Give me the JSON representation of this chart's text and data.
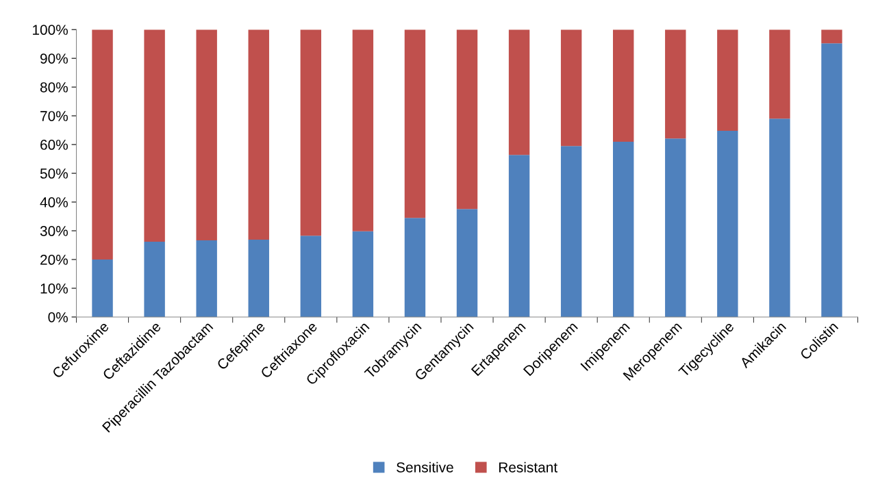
{
  "chart_data": {
    "type": "bar",
    "stacked": true,
    "categories": [
      "Cefuroxime",
      "Ceftazidime",
      "Piperacillin Tazobactam",
      "Cefepime",
      "Ceftriaxone",
      "Ciprofloxacin",
      "Tobramycin",
      "Gentamycin",
      "Ertapenem",
      "Doripenem",
      "Imipenem",
      "Meropenem",
      "Tigecycline",
      "Amikacin",
      "Colistin"
    ],
    "series": [
      {
        "name": "Sensitive",
        "color": "#4f81bd",
        "values": [
          20,
          26.2,
          26.7,
          26.9,
          28.3,
          29.8,
          34.5,
          37.6,
          56.4,
          59.5,
          61,
          62.1,
          64.8,
          69,
          95.2
        ]
      },
      {
        "name": "Resistant",
        "color": "#c0504d",
        "values": [
          80,
          73.8,
          73.3,
          73.1,
          71.7,
          70.2,
          65.5,
          62.4,
          43.6,
          40.5,
          39,
          37.9,
          35.2,
          31,
          4.8
        ]
      }
    ],
    "ylim": [
      0,
      100
    ],
    "yticks": [
      {
        "value": 0,
        "label": "0%"
      },
      {
        "value": 10,
        "label": "10%"
      },
      {
        "value": 20,
        "label": "20%"
      },
      {
        "value": 30,
        "label": "30%"
      },
      {
        "value": 40,
        "label": "40%"
      },
      {
        "value": 50,
        "label": "50%"
      },
      {
        "value": 60,
        "label": "60%"
      },
      {
        "value": 70,
        "label": "70%"
      },
      {
        "value": 80,
        "label": "80%"
      },
      {
        "value": 90,
        "label": "90%"
      },
      {
        "value": 100,
        "label": "100%"
      }
    ],
    "grid": false,
    "legend": "bottom"
  }
}
